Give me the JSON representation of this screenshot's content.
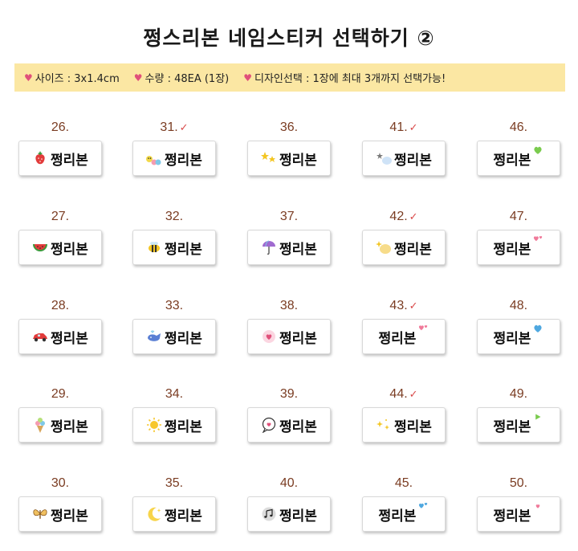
{
  "title": "쩡스리본 네임스티커 선택하기 ②",
  "info": {
    "size": "사이즈 : 3x1.4cm",
    "quantity": "수량 : 48EA (1장)",
    "design": "디자인선택 : 1장에 최대 3개까지 선택가능!"
  },
  "sticker_name": "쩡리본",
  "check_mark": "✓",
  "stickers": [
    {
      "number": "26.",
      "checked": false,
      "icon": "strawberry-icon"
    },
    {
      "number": "31.",
      "checked": true,
      "icon": "caterpillar-icon"
    },
    {
      "number": "36.",
      "checked": false,
      "icon": "stars-icon"
    },
    {
      "number": "41.",
      "checked": true,
      "icon": "blue-cloud-stars-icon"
    },
    {
      "number": "46.",
      "checked": false,
      "icon": "green-heart-icon"
    },
    {
      "number": "27.",
      "checked": false,
      "icon": "watermelon-icon"
    },
    {
      "number": "32.",
      "checked": false,
      "icon": "bee-icon"
    },
    {
      "number": "37.",
      "checked": false,
      "icon": "umbrella-icon"
    },
    {
      "number": "42.",
      "checked": true,
      "icon": "yellow-cloud-sparkle-icon"
    },
    {
      "number": "47.",
      "checked": false,
      "icon": "pink-hearts-icon"
    },
    {
      "number": "28.",
      "checked": false,
      "icon": "red-car-icon"
    },
    {
      "number": "33.",
      "checked": false,
      "icon": "whale-icon"
    },
    {
      "number": "38.",
      "checked": false,
      "icon": "heart-bubble-icon"
    },
    {
      "number": "43.",
      "checked": true,
      "icon": "pink-hearts-icon"
    },
    {
      "number": "48.",
      "checked": false,
      "icon": "blue-heart-icon"
    },
    {
      "number": "29.",
      "checked": false,
      "icon": "ice-cream-icon"
    },
    {
      "number": "34.",
      "checked": false,
      "icon": "sun-icon"
    },
    {
      "number": "39.",
      "checked": false,
      "icon": "speech-heart-icon"
    },
    {
      "number": "44.",
      "checked": true,
      "icon": "sparkles-icon"
    },
    {
      "number": "49.",
      "checked": false,
      "icon": "green-arrow-icon"
    },
    {
      "number": "30.",
      "checked": false,
      "icon": "butterfly-icon"
    },
    {
      "number": "35.",
      "checked": false,
      "icon": "moon-icon"
    },
    {
      "number": "40.",
      "checked": false,
      "icon": "music-note-icon"
    },
    {
      "number": "45.",
      "checked": false,
      "icon": "blue-hearts-icon"
    },
    {
      "number": "50.",
      "checked": false,
      "icon": "small-pink-heart-icon"
    }
  ],
  "colors": {
    "info_bar": "#fbe7a3",
    "number": "#7a3c22",
    "check": "#d94a4a",
    "heart": "#e0507a"
  }
}
